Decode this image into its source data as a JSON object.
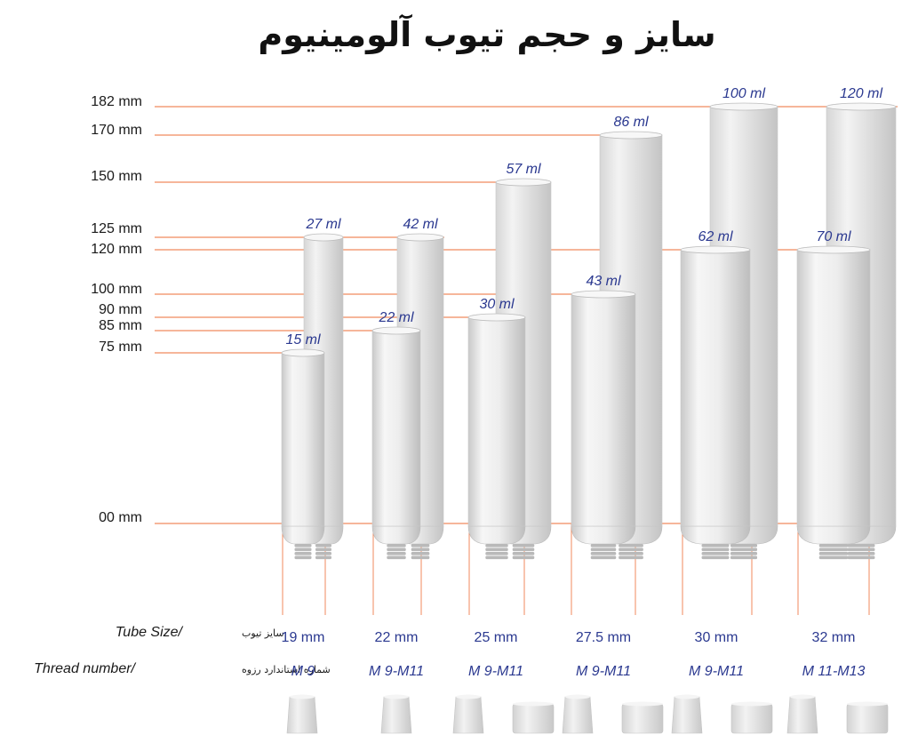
{
  "title": "سایز و حجم تیوب آلومینیوم",
  "level_labels": [
    {
      "text": "182 mm",
      "mm": 182
    },
    {
      "text": "170 mm",
      "mm": 170
    },
    {
      "text": "150 mm",
      "mm": 150
    },
    {
      "text": "125 mm",
      "mm": 125
    },
    {
      "text": "120 mm",
      "mm": 120
    },
    {
      "text": "100 mm",
      "mm": 100
    },
    {
      "text": "90 mm",
      "mm": 90
    },
    {
      "text": "85 mm",
      "mm": 85
    },
    {
      "text": "75 mm",
      "mm": 75
    },
    {
      "text": "00 mm",
      "mm": 0
    }
  ],
  "tube_groups": [
    {
      "size": "19 mm",
      "thread": "M 9",
      "tubes": [
        {
          "volume": "15 ml",
          "height_mm": 75
        },
        {
          "volume": "27 ml",
          "height_mm": 125
        }
      ]
    },
    {
      "size": "22 mm",
      "thread": "M 9-M11",
      "tubes": [
        {
          "volume": "22 ml",
          "height_mm": 85
        },
        {
          "volume": "42 ml",
          "height_mm": 125
        }
      ]
    },
    {
      "size": "25 mm",
      "thread": "M 9-M11",
      "tubes": [
        {
          "volume": "30 ml",
          "height_mm": 90
        },
        {
          "volume": "57 ml",
          "height_mm": 150
        }
      ]
    },
    {
      "size": "27.5 mm",
      "thread": "M 9-M11",
      "tubes": [
        {
          "volume": "43 ml",
          "height_mm": 100
        },
        {
          "volume": "86 ml",
          "height_mm": 170
        }
      ]
    },
    {
      "size": "30 mm",
      "thread": "M 9-M11",
      "tubes": [
        {
          "volume": "62 ml",
          "height_mm": 120
        },
        {
          "volume": "100 ml",
          "height_mm": 182
        }
      ]
    },
    {
      "size": "32 mm",
      "thread": "M 11-M13",
      "tubes": [
        {
          "volume": "70 ml",
          "height_mm": 120
        },
        {
          "volume": "120 ml",
          "height_mm": 182
        }
      ]
    }
  ],
  "rows": {
    "size_label_en": "Tube Size/",
    "size_label_fa": "سایز تیوب",
    "thread_label_en": "Thread number/",
    "thread_label_fa": "شماره استاندارد رزوه"
  },
  "caps": [
    {
      "group": "19 mm",
      "types": [
        "tall"
      ]
    },
    {
      "group": "22 mm",
      "types": [
        "tall"
      ]
    },
    {
      "group": "25 mm",
      "types": [
        "tall",
        "wide"
      ]
    },
    {
      "group": "27.5 mm",
      "types": [
        "tall",
        "wide"
      ]
    },
    {
      "group": "30 mm",
      "types": [
        "tall",
        "wide"
      ]
    },
    {
      "group": "32 mm",
      "types": [
        "tall",
        "wide"
      ]
    }
  ],
  "colors": {
    "guide_line": "#f08a5d",
    "volume_text": "#2b3990",
    "tube_body": "#ececec",
    "background": "#ffffff"
  }
}
